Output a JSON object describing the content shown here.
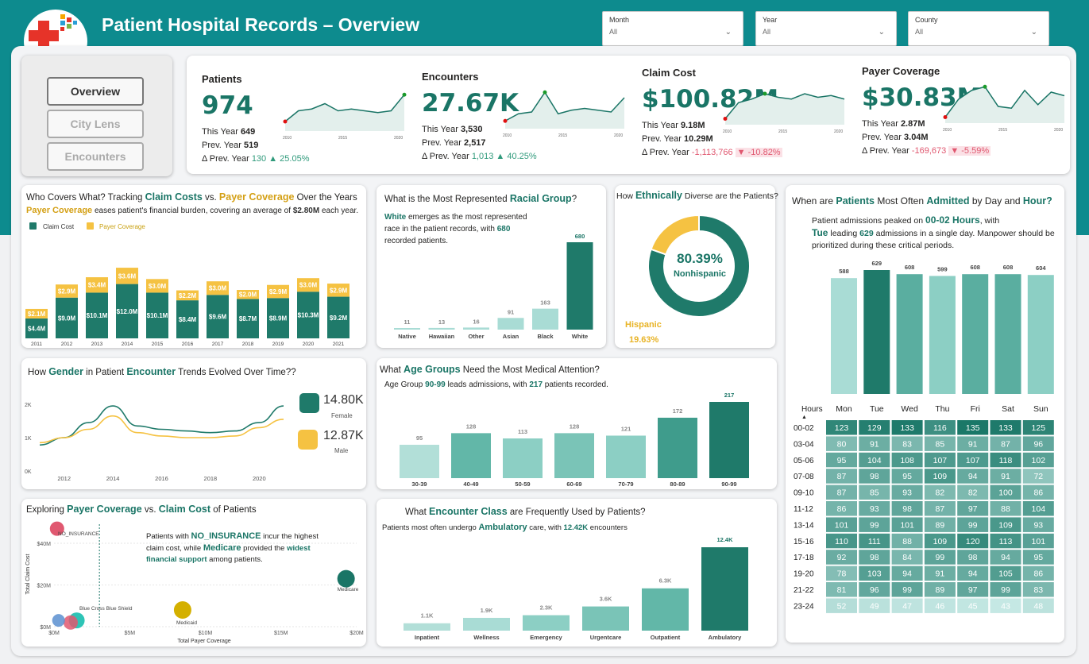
{
  "header": {
    "title": "Patient Hospital Records – Overview"
  },
  "colors": {
    "teal": "#1f7a6a",
    "gold": "#f5c242",
    "mid": "#62b7a8",
    "light": "#a9dcd5",
    "band": "#0d8b8e"
  },
  "slicers": [
    {
      "label": "Month",
      "value": "All"
    },
    {
      "label": "Year",
      "value": "All"
    },
    {
      "label": "County",
      "value": "All"
    }
  ],
  "nav": {
    "overview": "Overview",
    "city": "City Lens",
    "encounters": "Encounters"
  },
  "kpis": [
    {
      "title": "Patients",
      "value": "974",
      "this_label": "This Year",
      "this_value": "649",
      "prev_label": "Prev. Year",
      "prev_value": "519",
      "delta_label": "Δ Prev. Year",
      "delta_value": "130",
      "delta_pct": "▲ 25.05%",
      "trend": "up",
      "spark": [
        0.2,
        0.5,
        0.55,
        0.7,
        0.5,
        0.55,
        0.5,
        0.45,
        0.5,
        0.95
      ],
      "ticks": [
        "2010",
        "2015",
        "2020"
      ]
    },
    {
      "title": "Encounters",
      "value": "27.67K",
      "this_label": "This Year",
      "this_value": "3,530",
      "prev_label": "Prev. Year",
      "prev_value": "2,517",
      "delta_label": "Δ Prev. Year",
      "delta_value": "1,013",
      "delta_pct": "▲ 40.25%",
      "trend": "up",
      "spark": [
        0.15,
        0.35,
        0.4,
        0.95,
        0.35,
        0.45,
        0.5,
        0.45,
        0.4,
        0.8
      ],
      "ticks": [
        "2010",
        "2015",
        "2020"
      ]
    },
    {
      "title": "Claim Cost",
      "value": "$100.82M",
      "this_label": "This Year",
      "this_value": "9.18M",
      "prev_label": "Prev. Year",
      "prev_value": "10.29M",
      "delta_label": "Δ Prev. Year",
      "delta_value": "-1,113,766",
      "delta_pct": "▼ -10.82%",
      "trend": "down",
      "spark": [
        0.1,
        0.55,
        0.65,
        0.8,
        0.7,
        0.65,
        0.8,
        0.7,
        0.75,
        0.65
      ],
      "ticks": [
        "2010",
        "2015",
        "2020"
      ]
    },
    {
      "title": "Payer Coverage",
      "value": "$30.83M",
      "this_label": "This Year",
      "this_value": "2.87M",
      "prev_label": "Prev. Year",
      "prev_value": "3.04M",
      "delta_label": "Δ Prev. Year",
      "delta_value": "-169,673",
      "delta_pct": "▼ -5.59%",
      "trend": "down",
      "spark": [
        0.1,
        0.6,
        0.85,
        0.95,
        0.4,
        0.35,
        0.85,
        0.45,
        0.8,
        0.7
      ],
      "ticks": [
        "2010",
        "2015",
        "2020"
      ]
    }
  ],
  "claims_card": {
    "title_a": "Who Covers What? Tracking ",
    "title_b": "Claim Costs",
    "title_c": " vs. ",
    "title_d": "Payer Coverage",
    "title_e": " Over the Years",
    "sub_a": "Payer Coverage",
    "sub_b": " eases patient's financial burden, covering an average of ",
    "sub_c": "$2.80M",
    "sub_d": " each year.",
    "legend_claim": "Claim Cost",
    "legend_payer": "Payer Coverage"
  },
  "race_card": {
    "title_a": "What is the Most Represented ",
    "title_b": "Racial Group",
    "title_c": "?",
    "note_a": "White",
    "note_b": " emerges as the most represented race in the patient records, with ",
    "note_c": "680",
    "note_d": " recorded patients."
  },
  "eth_card": {
    "title_a": "How ",
    "title_b": "Ethnically",
    "title_c": " Diverse are the Patients?",
    "pct": "80.39%",
    "label": "Nonhispanic",
    "hisp_label": "Hispanic",
    "hisp_pct": "19.63%"
  },
  "gender_card": {
    "title_a": "How ",
    "title_b": "Gender",
    "title_c": " in Patient ",
    "title_d": "Encounter",
    "title_e": " Trends Evolved Over Time??",
    "female_value": "14.80K",
    "female_label": "Female",
    "male_value": "12.87K",
    "male_label": "Male"
  },
  "age_card": {
    "title_a": "What ",
    "title_b": "Age Groups",
    "title_c": " Need the Most Medical Attention?",
    "note_a": "Age Group ",
    "note_b": "90-99",
    "note_c": " leads admissions, with ",
    "note_d": "217",
    "note_e": " patients recorded."
  },
  "scatter_card": {
    "title_a": "Exploring ",
    "title_b": "Payer Coverage",
    "title_c": " vs. ",
    "title_d": "Claim Cost",
    "title_e": " of Patients",
    "note_a": "Patients with ",
    "note_b": "NO_INSURANCE",
    "note_c": " incur the highest claim cost, while ",
    "note_d": "Medicare",
    "note_e": " provided the ",
    "note_f": "widest financial support",
    "note_g": " among patients."
  },
  "enc_card": {
    "title_a": "What ",
    "title_b": "Encounter Class",
    "title_c": " are Frequently Used by Patients?",
    "note_a": "Patients most often undergo ",
    "note_b": "Ambulatory",
    "note_c": " care, with ",
    "note_d": "12.42K",
    "note_e": " encounters"
  },
  "week_card": {
    "title_a": "When are ",
    "title_b": "Patients",
    "title_c": " Most Often ",
    "title_d": "Admitted",
    "title_e": " by Day and ",
    "title_f": "Hour?",
    "note_a": "Patient admissions peaked on ",
    "note_b": "00-02 Hours",
    "note_c": ", with",
    "note_d": "Tue",
    "note_e": " leading ",
    "note_f": "629",
    "note_g": " admissions in a single day. Manpower should be prioritized during these critical periods.",
    "hours_header": "Hours"
  },
  "chart_data": [
    {
      "type": "bar",
      "name": "claims_vs_payer",
      "categories": [
        "2011",
        "2012",
        "2013",
        "2014",
        "2015",
        "2016",
        "2017",
        "2018",
        "2019",
        "2020",
        "2021"
      ],
      "series": [
        {
          "name": "Claim Cost",
          "values": [
            4.4,
            9.0,
            10.1,
            12.0,
            10.1,
            8.4,
            9.6,
            8.7,
            8.9,
            10.3,
            9.2
          ],
          "labels": [
            "$4.4M",
            "$9.0M",
            "$10.1M",
            "$12.0M",
            "$10.1M",
            "$8.4M",
            "$9.6M",
            "$8.7M",
            "$8.9M",
            "$10.3M",
            "$9.2M"
          ]
        },
        {
          "name": "Payer Coverage",
          "values": [
            2.1,
            2.9,
            3.4,
            3.6,
            3.0,
            2.2,
            3.0,
            2.0,
            2.9,
            3.0,
            2.9
          ],
          "labels": [
            "$2.1M",
            "$2.9M",
            "$3.4M",
            "$3.6M",
            "$3.0M",
            "$2.2M",
            "$3.0M",
            "$2.0M",
            "$2.9M",
            "$3.0M",
            "$2.9M"
          ]
        }
      ],
      "stacked": true
    },
    {
      "type": "bar",
      "name": "race",
      "categories": [
        "Native",
        "Hawaiian",
        "Other",
        "Asian",
        "Black",
        "White"
      ],
      "values": [
        11,
        13,
        16,
        91,
        163,
        680
      ]
    },
    {
      "type": "pie",
      "name": "ethnicity",
      "labels": [
        "Nonhispanic",
        "Hispanic"
      ],
      "values": [
        80.39,
        19.63
      ]
    },
    {
      "type": "line",
      "name": "gender_trend",
      "x": [
        2011,
        2012,
        2013,
        2014,
        2015,
        2016,
        2017,
        2018,
        2019,
        2020,
        2021
      ],
      "ticks": [
        "2012",
        "2014",
        "2016",
        "2018",
        "2020"
      ],
      "yticks": [
        "0K",
        "1K",
        "2K"
      ],
      "series": [
        {
          "name": "Female",
          "values": [
            780,
            1000,
            1450,
            1950,
            1350,
            1250,
            1200,
            1150,
            1200,
            1450,
            1950
          ]
        },
        {
          "name": "Male",
          "values": [
            850,
            1000,
            1250,
            1650,
            1150,
            1050,
            1000,
            1000,
            1050,
            1300,
            1550
          ]
        }
      ]
    },
    {
      "type": "bar",
      "name": "age_groups",
      "categories": [
        "30-39",
        "40-49",
        "50-59",
        "60-69",
        "70-79",
        "80-89",
        "90-99"
      ],
      "values": [
        95,
        128,
        113,
        128,
        121,
        172,
        217
      ]
    },
    {
      "type": "scatter",
      "name": "payer_vs_claim",
      "xlabel": "Total Payer Coverage",
      "ylabel": "Total Claim Cost",
      "xticks": [
        "$0M",
        "$5M",
        "$10M",
        "$15M",
        "$20M"
      ],
      "yticks": [
        "$0M",
        "$20M",
        "$40M"
      ],
      "points": [
        {
          "label": "NO_INSURANCE",
          "x": 0.2,
          "y": 47,
          "color": "#e05870"
        },
        {
          "label": "Medicare",
          "x": 19.3,
          "y": 23,
          "color": "#1a7566"
        },
        {
          "label": "Medicaid",
          "x": 8.5,
          "y": 8,
          "color": "#d4b000"
        },
        {
          "label": "Blue Cross Blue Shield",
          "x": 1.5,
          "y": 3,
          "color": "#2ec4b6"
        }
      ]
    },
    {
      "type": "bar",
      "name": "encounter_class",
      "categories": [
        "Inpatient",
        "Wellness",
        "Emergency",
        "Urgentcare",
        "Outpatient",
        "Ambulatory"
      ],
      "values": [
        1.1,
        1.9,
        2.3,
        3.6,
        6.3,
        12.42
      ],
      "labels": [
        "1.1K",
        "1.9K",
        "2.3K",
        "3.6K",
        "6.3K",
        "12.4K"
      ]
    },
    {
      "type": "bar",
      "name": "weekday_admissions",
      "categories": [
        "Mon",
        "Tue",
        "Wed",
        "Thu",
        "Fri",
        "Sat",
        "Sun"
      ],
      "values": [
        588,
        629,
        608,
        599,
        608,
        608,
        604
      ]
    },
    {
      "type": "heatmap",
      "name": "day_hour",
      "columns": [
        "Mon",
        "Tue",
        "Wed",
        "Thu",
        "Fri",
        "Sat",
        "Sun"
      ],
      "rows": [
        "00-02",
        "03-04",
        "05-06",
        "07-08",
        "09-10",
        "11-12",
        "13-14",
        "15-16",
        "17-18",
        "19-20",
        "21-22",
        "23-24"
      ],
      "values": [
        [
          123,
          129,
          133,
          116,
          135,
          133,
          125
        ],
        [
          80,
          91,
          83,
          85,
          91,
          87,
          96
        ],
        [
          95,
          104,
          108,
          107,
          107,
          118,
          102
        ],
        [
          87,
          98,
          95,
          109,
          94,
          91,
          72
        ],
        [
          87,
          85,
          93,
          82,
          82,
          100,
          86
        ],
        [
          86,
          93,
          98,
          87,
          97,
          88,
          104
        ],
        [
          101,
          99,
          101,
          89,
          99,
          109,
          93
        ],
        [
          110,
          111,
          88,
          109,
          120,
          113,
          101
        ],
        [
          92,
          98,
          84,
          99,
          98,
          94,
          95
        ],
        [
          78,
          103,
          94,
          91,
          94,
          105,
          86
        ],
        [
          81,
          96,
          99,
          89,
          97,
          99,
          83
        ],
        [
          52,
          49,
          47,
          46,
          45,
          43,
          48
        ]
      ]
    }
  ]
}
